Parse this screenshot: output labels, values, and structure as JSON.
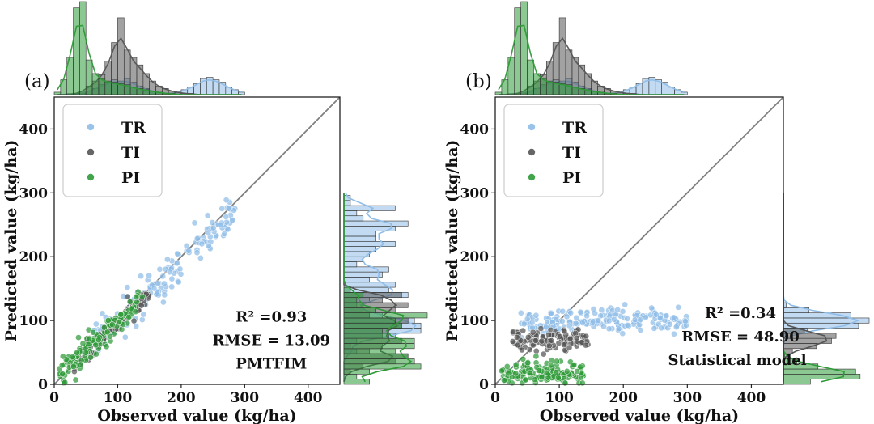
{
  "chart_data": [
    {
      "type": "scatter",
      "panel_label": "(a)",
      "xlabel": "Observed value (kg/ha)",
      "ylabel": "Predicted value (kg/ha)",
      "xlim": [
        0,
        450
      ],
      "ylim": [
        0,
        450
      ],
      "xticks": [
        "0",
        "100",
        "200",
        "300",
        "400"
      ],
      "yticks": [
        "0",
        "100",
        "200",
        "300",
        "400"
      ],
      "reference_line": "1:1",
      "legend_position": "top-left",
      "series": [
        {
          "name": "TR",
          "color": "#8fbde8",
          "x_range": [
            60,
            285
          ],
          "noise": 14,
          "slope": 0.92,
          "intercept": 8,
          "count": 170,
          "mode": "linear"
        },
        {
          "name": "TI",
          "color": "#555555",
          "x_range": [
            28,
            150
          ],
          "noise": 9,
          "slope": 0.95,
          "intercept": 3,
          "count": 110,
          "mode": "linear"
        },
        {
          "name": "PI",
          "color": "#2e9a37",
          "x_range": [
            8,
            140
          ],
          "noise": 11,
          "slope": 0.92,
          "intercept": 6,
          "count": 130,
          "mode": "linear"
        }
      ],
      "marginal_x_bins": [
        {
          "name": "TR",
          "edges": [
            0,
            300
          ],
          "counts": [
            0,
            0,
            1,
            1,
            1,
            3,
            5,
            8,
            10,
            12,
            11,
            13,
            10,
            7,
            5,
            3,
            2,
            1,
            1,
            2,
            4,
            6,
            9,
            13,
            14,
            12,
            10,
            6,
            4,
            2
          ]
        },
        {
          "name": "TI",
          "edges": [
            0,
            300
          ],
          "counts": [
            0,
            0,
            0,
            1,
            3,
            7,
            11,
            16,
            27,
            42,
            62,
            36,
            30,
            24,
            17,
            11,
            7,
            5,
            3,
            2,
            1,
            1,
            0,
            0,
            0,
            0,
            0,
            0,
            0,
            0
          ]
        },
        {
          "name": "PI",
          "edges": [
            0,
            300
          ],
          "counts": [
            2,
            12,
            30,
            70,
            75,
            28,
            17,
            13,
            11,
            10,
            9,
            8,
            6,
            5,
            4,
            3,
            2,
            1,
            1,
            0,
            0,
            0,
            0,
            0,
            0,
            0,
            0,
            0,
            0,
            0
          ]
        }
      ],
      "stats": {
        "r2": "R² =0.93",
        "rmse": "RMSE = 13.09",
        "model": "PMTFIM"
      }
    },
    {
      "type": "scatter",
      "panel_label": "(b)",
      "xlabel": "Observed value (kg/ha)",
      "ylabel": "Predicted value (kg/ha)",
      "xlim": [
        0,
        450
      ],
      "ylim": [
        0,
        450
      ],
      "xticks": [
        "0",
        "100",
        "200",
        "300",
        "400"
      ],
      "yticks": [
        "0",
        "100",
        "200",
        "300",
        "400"
      ],
      "reference_line": "1:1",
      "legend_position": "top-left",
      "series": [
        {
          "name": "TR",
          "color": "#8fbde8",
          "x_range": [
            40,
            300
          ],
          "y_center": 100,
          "y_spread": 9,
          "count": 190,
          "mode": "flat"
        },
        {
          "name": "TI",
          "color": "#555555",
          "x_range": [
            25,
            145
          ],
          "y_center": 70,
          "y_spread": 8,
          "count": 110,
          "mode": "flat"
        },
        {
          "name": "PI",
          "color": "#2e9a37",
          "x_range": [
            10,
            140
          ],
          "y_center": 18,
          "y_spread": 9,
          "count": 150,
          "mode": "flat"
        }
      ],
      "marginal_x_bins": [
        {
          "name": "TR",
          "edges": [
            0,
            300
          ],
          "counts": [
            0,
            0,
            1,
            1,
            1,
            3,
            5,
            8,
            10,
            12,
            11,
            13,
            10,
            7,
            5,
            3,
            2,
            1,
            1,
            2,
            4,
            6,
            9,
            13,
            14,
            12,
            10,
            6,
            4,
            2
          ]
        },
        {
          "name": "TI",
          "edges": [
            0,
            300
          ],
          "counts": [
            0,
            0,
            0,
            1,
            3,
            7,
            11,
            16,
            27,
            42,
            62,
            36,
            30,
            24,
            17,
            11,
            7,
            5,
            3,
            2,
            1,
            1,
            0,
            0,
            0,
            0,
            0,
            0,
            0,
            0
          ]
        },
        {
          "name": "PI",
          "edges": [
            0,
            300
          ],
          "counts": [
            2,
            12,
            30,
            70,
            75,
            28,
            17,
            13,
            11,
            10,
            9,
            8,
            6,
            5,
            4,
            3,
            2,
            1,
            1,
            0,
            0,
            0,
            0,
            0,
            0,
            0,
            0,
            0,
            0,
            0
          ]
        }
      ],
      "stats": {
        "r2": "R² =0.34",
        "rmse": "RMSE = 48.90",
        "model": "Statistical model"
      }
    }
  ]
}
